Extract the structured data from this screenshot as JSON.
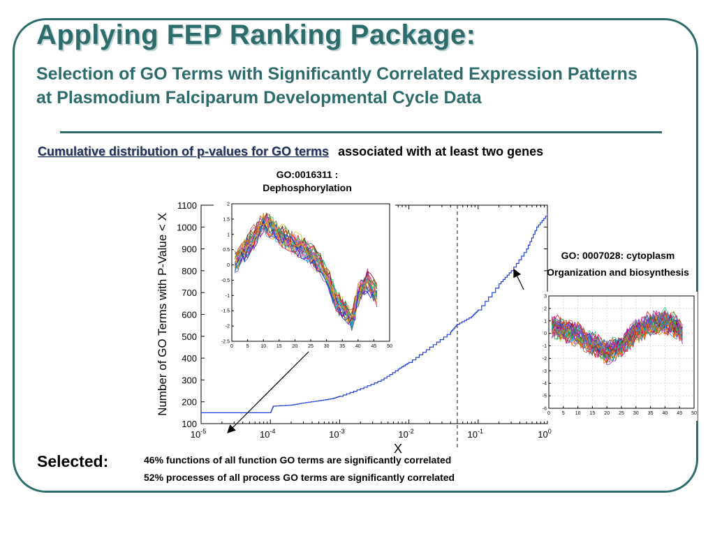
{
  "slide": {
    "title": "Applying FEP Ranking Package:",
    "subtitle": "Selection of GO Terms with Significantly Correlated Expression Patterns at Plasmodium Falciparum Developmental Cycle Data",
    "heading_emph": "Cumulative distribution of p-values for GO terms",
    "heading_rest": "associated with at least two genes",
    "annotation_left_line1": "GO:0016311 :",
    "annotation_left_line2": "Dephosphorylation",
    "annotation_right_line1": "GO: 0007028: cytoplasm",
    "annotation_right_line2": "Organization and biosynthesis",
    "selected_label": "Selected:",
    "bullet_1": "46% functions of all function GO terms are significantly correlated",
    "bullet_2": "52% processes of all process GO terms are significantly correlated",
    "colors": {
      "theme": "#2e6b6b",
      "heading_emph": "#20305a",
      "cdf_line": "#1f3fd6"
    }
  },
  "chart_data": [
    {
      "type": "line",
      "xlabel": "X",
      "ylabel": "Number of GO Terms with P-Value < X",
      "xscale": "log",
      "xlim": [
        1e-05,
        1
      ],
      "ylim": [
        100,
        1100
      ],
      "xticks": [
        "10-5",
        "10-4",
        "10-3",
        "10-2",
        "10-1",
        "100"
      ],
      "yticks": [
        "100",
        "200",
        "300",
        "400",
        "500",
        "600",
        "700",
        "800",
        "900",
        "1000",
        "1100"
      ],
      "threshold_x": 0.05,
      "series": [
        {
          "x": [
            1e-05,
            0.0001,
            0.00011,
            0.0002,
            0.0003,
            0.0005,
            0.0008,
            0.001,
            0.002,
            0.004,
            0.007,
            0.01,
            0.02,
            0.04,
            0.05,
            0.08,
            0.1,
            0.2,
            0.3,
            0.5,
            0.7,
            1
          ],
          "y": [
            150,
            150,
            180,
            185,
            195,
            205,
            215,
            225,
            260,
            300,
            350,
            380,
            450,
            520,
            555,
            590,
            620,
            740,
            800,
            900,
            1000,
            1060
          ]
        }
      ]
    },
    {
      "type": "line",
      "xlim": [
        0,
        50
      ],
      "ylim": [
        -2.5,
        2
      ],
      "xticks": [
        "0",
        "5",
        "10",
        "15",
        "20",
        "25",
        "30",
        "35",
        "40",
        "45",
        "50"
      ],
      "yticks": [
        "-2.5",
        "-2",
        "-1.5",
        "-1",
        "-0.5",
        "0",
        "0.5",
        "1",
        "1.5",
        "2"
      ],
      "base_profile": {
        "x": [
          1,
          5,
          10,
          15,
          20,
          25,
          30,
          33,
          36,
          38,
          40,
          43,
          46
        ],
        "y": [
          0.1,
          0.6,
          1.4,
          1.0,
          0.7,
          0.4,
          -0.3,
          -1.2,
          -1.5,
          -1.8,
          -1.0,
          -0.5,
          -1.0
        ]
      },
      "n_series": 30
    },
    {
      "type": "line",
      "xlim": [
        0,
        50
      ],
      "ylim": [
        -6,
        3
      ],
      "xticks": [
        "0",
        "5",
        "10",
        "15",
        "20",
        "25",
        "30",
        "35",
        "40",
        "45",
        "50"
      ],
      "yticks": [
        "-6",
        "-5",
        "-4",
        "-3",
        "-2",
        "-1",
        "0",
        "1",
        "2",
        "3"
      ],
      "base_profile": {
        "x": [
          1,
          5,
          10,
          15,
          20,
          25,
          30,
          35,
          40,
          43,
          46
        ],
        "y": [
          0.5,
          0.3,
          0.0,
          -0.8,
          -1.5,
          -1.0,
          0.2,
          0.8,
          1.0,
          0.7,
          0.0
        ]
      },
      "n_series": 45
    }
  ]
}
